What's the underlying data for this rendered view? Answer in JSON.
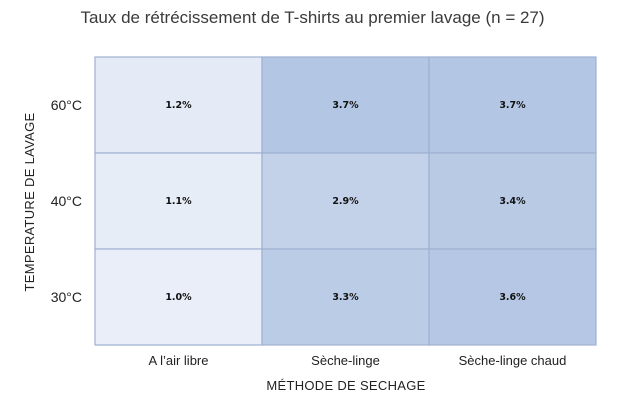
{
  "chart_data": {
    "type": "heatmap",
    "title": "Taux de rétrécissement de T-shirts au premier lavage (n = 27)",
    "xlabel": "MÉTHODE DE SECHAGE",
    "ylabel": "TEMPERATURE DE LAVAGE",
    "x_categories": [
      "A l’air libre",
      "Sèche-linge",
      "Sèche-linge chaud"
    ],
    "y_categories": [
      "60°C",
      "40°C",
      "30°C"
    ],
    "values": [
      [
        1.2,
        3.7,
        3.7
      ],
      [
        1.1,
        2.9,
        3.4
      ],
      [
        1.0,
        3.3,
        3.6
      ]
    ],
    "labels": [
      [
        "1.2%",
        "3.7%",
        "3.7%"
      ],
      [
        "1.1%",
        "2.9%",
        "3.4%"
      ],
      [
        "1.0%",
        "3.3%",
        "3.6%"
      ]
    ],
    "unit": "%",
    "color_low": "#e9eef8",
    "color_high": "#b3c6e3",
    "border_color": "#9fb1d0",
    "legend": "none"
  }
}
